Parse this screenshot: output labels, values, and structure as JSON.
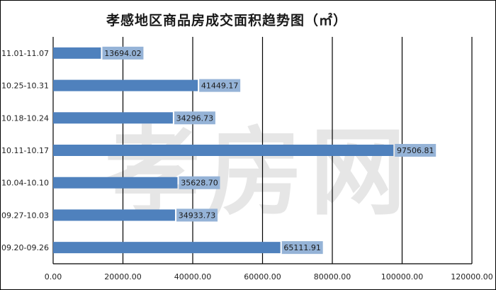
{
  "chart_data": {
    "type": "bar",
    "orientation": "horizontal",
    "title": "孝感地区商品房成交面积趋势图（㎡）",
    "categories": [
      "11.01-11.07",
      "10.25-10.31",
      "10.18-10.24",
      "10.11-10.17",
      "10.04-10.10",
      "09.27-10.03",
      "09.20-09.26"
    ],
    "values": [
      13694.02,
      41449.17,
      34296.73,
      97506.81,
      35628.7,
      34933.73,
      65111.91
    ],
    "value_labels": [
      "13694.02",
      "41449.17",
      "34296.73",
      "97506.81",
      "35628.70",
      "34933.73",
      "65111.91"
    ],
    "xlim": [
      0,
      120000
    ],
    "x_ticks": [
      "0.00",
      "20000.00",
      "40000.00",
      "60000.00",
      "80000.00",
      "100000.00",
      "120000.00"
    ],
    "xlabel": "",
    "ylabel": "",
    "grid": true,
    "bar_color": "#4f81bd",
    "label_bg_color": "#95b3d7",
    "watermark": "孝房网"
  }
}
